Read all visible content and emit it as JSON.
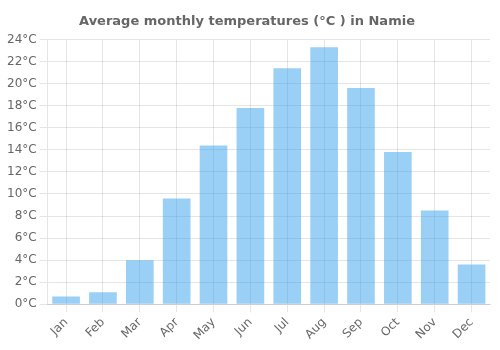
{
  "chart_data": {
    "type": "bar",
    "title": "Average monthly temperatures (°C ) in Namie",
    "categories": [
      "Jan",
      "Feb",
      "Mar",
      "Apr",
      "May",
      "Jun",
      "Jul",
      "Aug",
      "Sep",
      "Oct",
      "Nov",
      "Dec"
    ],
    "values": [
      0.7,
      1.1,
      4.0,
      9.6,
      14.4,
      17.8,
      21.4,
      23.3,
      19.6,
      13.8,
      8.5,
      3.6
    ],
    "ylim": [
      0,
      24
    ],
    "yticks": [
      {
        "value": 0,
        "label": "0°C"
      },
      {
        "value": 2,
        "label": "2°C"
      },
      {
        "value": 4,
        "label": "4°C"
      },
      {
        "value": 6,
        "label": "6°C"
      },
      {
        "value": 8,
        "label": "8°C"
      },
      {
        "value": 10,
        "label": "10°C"
      },
      {
        "value": 12,
        "label": "12°C"
      },
      {
        "value": 14,
        "label": "14°C"
      },
      {
        "value": 16,
        "label": "16°C"
      },
      {
        "value": 18,
        "label": "18°C"
      },
      {
        "value": 20,
        "label": "20°C"
      },
      {
        "value": 22,
        "label": "22°C"
      },
      {
        "value": 24,
        "label": "24°C"
      }
    ],
    "grid": true
  }
}
